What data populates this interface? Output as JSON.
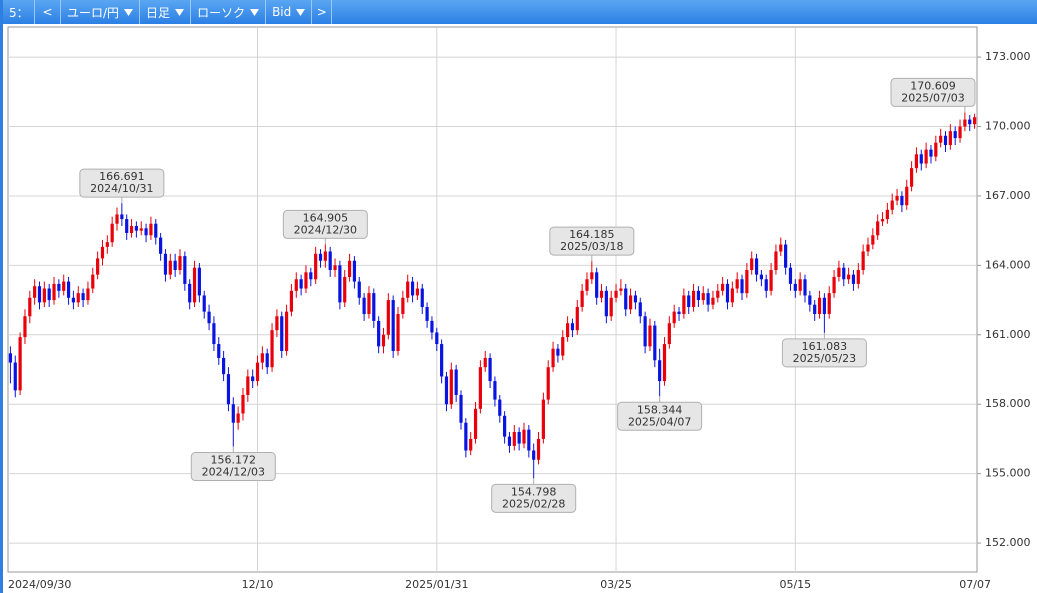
{
  "toolbar": {
    "items": [
      "5：",
      "<",
      "ユーロ/円",
      "日足",
      "ローソク",
      "Bid",
      ">"
    ]
  },
  "chart_data": {
    "type": "candlestick",
    "up_color": "#e8000b",
    "down_color": "#0a14e0",
    "grid": true,
    "ylim": [
      150.75,
      174.3
    ],
    "yticks": [
      {
        "value": 152,
        "label": "152.000"
      },
      {
        "value": 155,
        "label": "155.000"
      },
      {
        "value": 158,
        "label": "158.000"
      },
      {
        "value": 161,
        "label": "161.000"
      },
      {
        "value": 164,
        "label": "164.000"
      },
      {
        "value": 167,
        "label": "167.000"
      },
      {
        "value": 170,
        "label": "170.000"
      },
      {
        "value": 173,
        "label": "173.000"
      }
    ],
    "categories": [
      "2024/09/30",
      null,
      null,
      null,
      null,
      null,
      null,
      null,
      null,
      null,
      null,
      null,
      null,
      null,
      null,
      null,
      null,
      null,
      null,
      null,
      null,
      null,
      null,
      null,
      null,
      null,
      null,
      null,
      null,
      null,
      null,
      null,
      null,
      null,
      null,
      null,
      null,
      null,
      null,
      null,
      null,
      null,
      null,
      null,
      null,
      null,
      null,
      null,
      null,
      null,
      null,
      "12/10",
      null,
      null,
      null,
      null,
      null,
      null,
      null,
      null,
      null,
      null,
      null,
      null,
      null,
      null,
      null,
      null,
      null,
      null,
      null,
      null,
      null,
      null,
      null,
      null,
      null,
      null,
      null,
      null,
      null,
      null,
      null,
      null,
      null,
      null,
      null,
      null,
      "2025/01/31",
      null,
      null,
      null,
      null,
      null,
      null,
      null,
      null,
      null,
      null,
      null,
      null,
      null,
      null,
      null,
      null,
      null,
      null,
      null,
      null,
      null,
      null,
      null,
      null,
      null,
      null,
      null,
      null,
      null,
      null,
      null,
      null,
      null,
      null,
      null,
      null,
      "03/25",
      null,
      null,
      null,
      null,
      null,
      null,
      null,
      null,
      null,
      null,
      null,
      null,
      null,
      null,
      null,
      null,
      null,
      null,
      null,
      null,
      null,
      null,
      null,
      null,
      null,
      null,
      null,
      null,
      null,
      null,
      null,
      null,
      null,
      null,
      null,
      null,
      "05/15",
      null,
      null,
      null,
      null,
      null,
      null,
      null,
      null,
      null,
      null,
      null,
      null,
      null,
      null,
      null,
      null,
      null,
      null,
      null,
      null,
      null,
      null,
      null,
      null,
      null,
      null,
      null,
      null,
      null,
      null,
      null,
      null,
      null,
      null,
      null,
      null,
      "07/07"
    ],
    "ohlc": [
      [
        160.2,
        160.5,
        158.9,
        159.8
      ],
      [
        159.8,
        160.1,
        158.3,
        158.6
      ],
      [
        158.6,
        161.1,
        158.4,
        160.9
      ],
      [
        160.9,
        162.1,
        160.6,
        161.8
      ],
      [
        161.8,
        162.9,
        161.5,
        162.6
      ],
      [
        162.6,
        163.4,
        162.3,
        163.1
      ],
      [
        163.1,
        163.3,
        162.1,
        162.4
      ],
      [
        162.4,
        163.3,
        162.2,
        163.0
      ],
      [
        163.0,
        163.2,
        162.2,
        162.5
      ],
      [
        162.5,
        163.5,
        162.3,
        163.2
      ],
      [
        163.2,
        163.4,
        162.6,
        162.9
      ],
      [
        162.9,
        163.6,
        162.7,
        163.3
      ],
      [
        163.3,
        163.5,
        162.3,
        162.6
      ],
      [
        162.6,
        162.9,
        162.1,
        162.4
      ],
      [
        162.4,
        163.1,
        162.2,
        162.8
      ],
      [
        162.8,
        163.0,
        162.2,
        162.5
      ],
      [
        162.5,
        163.3,
        162.3,
        163.0
      ],
      [
        163.0,
        163.9,
        162.8,
        163.6
      ],
      [
        163.6,
        164.6,
        163.4,
        164.3
      ],
      [
        164.3,
        165.1,
        164.0,
        164.8
      ],
      [
        164.8,
        165.3,
        164.5,
        165.0
      ],
      [
        165.0,
        166.1,
        164.8,
        165.8
      ],
      [
        165.8,
        166.5,
        165.5,
        166.2
      ],
      [
        166.2,
        166.691,
        165.7,
        166.0
      ],
      [
        166.0,
        166.2,
        165.1,
        165.4
      ],
      [
        165.4,
        166.0,
        165.2,
        165.7
      ],
      [
        165.7,
        165.9,
        165.2,
        165.5
      ],
      [
        165.5,
        165.9,
        165.3,
        165.6
      ],
      [
        165.6,
        165.8,
        165.0,
        165.3
      ],
      [
        165.3,
        166.1,
        165.1,
        165.8
      ],
      [
        165.8,
        166.0,
        164.9,
        165.2
      ],
      [
        165.2,
        165.4,
        164.2,
        164.5
      ],
      [
        164.5,
        164.7,
        163.3,
        163.6
      ],
      [
        163.6,
        164.5,
        163.4,
        164.2
      ],
      [
        164.2,
        164.5,
        163.5,
        163.8
      ],
      [
        163.8,
        164.7,
        163.6,
        164.4
      ],
      [
        164.4,
        164.6,
        162.9,
        163.2
      ],
      [
        163.2,
        163.4,
        162.1,
        162.4
      ],
      [
        162.4,
        164.2,
        162.2,
        163.9
      ],
      [
        163.9,
        164.1,
        162.4,
        162.7
      ],
      [
        162.7,
        162.9,
        161.7,
        162.0
      ],
      [
        162.0,
        162.3,
        161.2,
        161.5
      ],
      [
        161.5,
        161.8,
        160.3,
        160.6
      ],
      [
        160.6,
        160.9,
        159.7,
        160.0
      ],
      [
        160.0,
        160.3,
        159.0,
        159.3
      ],
      [
        159.3,
        159.6,
        157.7,
        158.0
      ],
      [
        158.0,
        158.3,
        156.172,
        157.2
      ],
      [
        157.2,
        157.9,
        156.9,
        157.6
      ],
      [
        157.6,
        158.7,
        157.3,
        158.4
      ],
      [
        158.4,
        159.5,
        158.1,
        159.2
      ],
      [
        159.2,
        159.5,
        158.7,
        159.0
      ],
      [
        159.0,
        160.1,
        158.8,
        159.8
      ],
      [
        159.8,
        160.5,
        159.5,
        160.2
      ],
      [
        160.2,
        160.4,
        159.3,
        159.6
      ],
      [
        159.6,
        161.5,
        159.4,
        161.2
      ],
      [
        161.2,
        162.1,
        160.9,
        161.8
      ],
      [
        161.8,
        162.0,
        160.0,
        160.3
      ],
      [
        160.3,
        162.3,
        160.1,
        162.0
      ],
      [
        162.0,
        163.2,
        161.8,
        162.9
      ],
      [
        162.9,
        163.7,
        162.6,
        163.4
      ],
      [
        163.4,
        163.6,
        162.7,
        163.0
      ],
      [
        163.0,
        164.0,
        162.8,
        163.7
      ],
      [
        163.7,
        163.9,
        163.1,
        163.4
      ],
      [
        163.4,
        164.8,
        163.2,
        164.5
      ],
      [
        164.5,
        164.7,
        163.9,
        164.2
      ],
      [
        164.2,
        164.905,
        163.9,
        164.6
      ],
      [
        164.6,
        164.8,
        163.5,
        163.8
      ],
      [
        163.8,
        164.3,
        163.5,
        164.0
      ],
      [
        164.0,
        164.2,
        162.1,
        162.4
      ],
      [
        162.4,
        163.8,
        162.2,
        163.5
      ],
      [
        163.5,
        164.5,
        163.3,
        164.2
      ],
      [
        164.2,
        164.4,
        163.0,
        163.3
      ],
      [
        163.3,
        163.5,
        162.3,
        162.6
      ],
      [
        162.6,
        162.8,
        161.6,
        161.9
      ],
      [
        161.9,
        163.1,
        161.7,
        162.8
      ],
      [
        162.8,
        163.0,
        161.3,
        161.6
      ],
      [
        161.6,
        161.8,
        160.2,
        160.5
      ],
      [
        160.5,
        161.3,
        160.2,
        161.0
      ],
      [
        161.0,
        162.8,
        160.8,
        162.5
      ],
      [
        162.5,
        162.7,
        160.0,
        160.3
      ],
      [
        160.3,
        162.2,
        160.1,
        161.9
      ],
      [
        161.9,
        162.9,
        161.7,
        162.6
      ],
      [
        162.6,
        163.6,
        162.4,
        163.3
      ],
      [
        163.3,
        163.5,
        162.4,
        162.7
      ],
      [
        162.7,
        163.3,
        162.5,
        163.0
      ],
      [
        163.0,
        163.2,
        161.9,
        162.2
      ],
      [
        162.2,
        162.4,
        161.3,
        161.6
      ],
      [
        161.6,
        161.8,
        160.8,
        161.1
      ],
      [
        161.1,
        161.3,
        160.3,
        160.6
      ],
      [
        160.6,
        160.8,
        158.9,
        159.2
      ],
      [
        159.2,
        159.4,
        157.7,
        158.0
      ],
      [
        158.0,
        159.8,
        157.8,
        159.5
      ],
      [
        159.5,
        159.7,
        158.1,
        158.4
      ],
      [
        158.4,
        158.6,
        156.9,
        157.2
      ],
      [
        157.2,
        157.4,
        155.7,
        156.0
      ],
      [
        156.0,
        156.8,
        155.8,
        156.5
      ],
      [
        156.5,
        158.1,
        156.3,
        157.8
      ],
      [
        157.8,
        159.9,
        157.6,
        159.6
      ],
      [
        159.6,
        160.3,
        159.4,
        160.0
      ],
      [
        160.0,
        160.2,
        158.7,
        159.0
      ],
      [
        159.0,
        159.2,
        157.9,
        158.2
      ],
      [
        158.2,
        158.4,
        157.2,
        157.5
      ],
      [
        157.5,
        157.7,
        156.3,
        156.6
      ],
      [
        156.6,
        156.8,
        155.9,
        156.2
      ],
      [
        156.2,
        157.1,
        156.0,
        156.8
      ],
      [
        156.8,
        157.0,
        156.0,
        156.3
      ],
      [
        156.3,
        157.2,
        156.1,
        156.9
      ],
      [
        156.9,
        157.1,
        155.7,
        156.0
      ],
      [
        156.0,
        156.3,
        154.798,
        155.6
      ],
      [
        155.6,
        156.8,
        155.4,
        156.5
      ],
      [
        156.5,
        158.5,
        156.3,
        158.2
      ],
      [
        158.2,
        159.9,
        158.0,
        159.6
      ],
      [
        159.6,
        160.7,
        159.4,
        160.4
      ],
      [
        160.4,
        160.6,
        159.8,
        160.1
      ],
      [
        160.1,
        161.2,
        159.9,
        160.9
      ],
      [
        160.9,
        161.8,
        160.7,
        161.5
      ],
      [
        161.5,
        161.7,
        160.9,
        161.2
      ],
      [
        161.2,
        162.5,
        161.0,
        162.2
      ],
      [
        162.2,
        163.2,
        162.0,
        162.9
      ],
      [
        162.9,
        163.7,
        162.7,
        163.4
      ],
      [
        163.4,
        164.185,
        163.2,
        163.7
      ],
      [
        163.7,
        163.9,
        162.3,
        162.6
      ],
      [
        162.6,
        163.2,
        162.4,
        162.9
      ],
      [
        162.9,
        163.1,
        161.5,
        161.8
      ],
      [
        161.8,
        162.9,
        161.6,
        162.6
      ],
      [
        162.6,
        163.2,
        162.4,
        162.9
      ],
      [
        162.9,
        163.4,
        162.7,
        163.0
      ],
      [
        163.0,
        163.2,
        161.8,
        162.1
      ],
      [
        162.1,
        163.0,
        161.9,
        162.7
      ],
      [
        162.7,
        162.9,
        162.1,
        162.4
      ],
      [
        162.4,
        162.6,
        161.5,
        161.8
      ],
      [
        161.8,
        162.0,
        160.2,
        160.5
      ],
      [
        160.5,
        161.7,
        160.3,
        161.4
      ],
      [
        161.4,
        161.6,
        159.6,
        159.9
      ],
      [
        159.9,
        160.4,
        158.344,
        159.0
      ],
      [
        159.0,
        160.9,
        158.8,
        160.6
      ],
      [
        160.6,
        161.8,
        160.4,
        161.5
      ],
      [
        161.5,
        162.3,
        161.3,
        162.0
      ],
      [
        162.0,
        162.2,
        161.6,
        161.9
      ],
      [
        161.9,
        163.0,
        161.7,
        162.7
      ],
      [
        162.7,
        162.9,
        161.9,
        162.2
      ],
      [
        162.2,
        163.2,
        162.0,
        162.9
      ],
      [
        162.9,
        163.1,
        162.2,
        162.5
      ],
      [
        162.5,
        163.1,
        162.3,
        162.8
      ],
      [
        162.8,
        163.0,
        162.0,
        162.3
      ],
      [
        162.3,
        162.9,
        162.1,
        162.6
      ],
      [
        162.6,
        163.2,
        162.4,
        162.9
      ],
      [
        162.9,
        163.5,
        162.7,
        163.2
      ],
      [
        163.2,
        163.4,
        162.1,
        162.4
      ],
      [
        162.4,
        163.3,
        162.2,
        163.0
      ],
      [
        163.0,
        163.7,
        162.8,
        163.4
      ],
      [
        163.4,
        163.6,
        162.5,
        162.8
      ],
      [
        162.8,
        164.1,
        162.6,
        163.8
      ],
      [
        163.8,
        164.6,
        163.6,
        164.3
      ],
      [
        164.3,
        164.5,
        163.3,
        163.6
      ],
      [
        163.6,
        163.8,
        163.1,
        163.4
      ],
      [
        163.4,
        163.6,
        162.6,
        162.9
      ],
      [
        162.9,
        164.1,
        162.7,
        163.8
      ],
      [
        163.8,
        164.9,
        163.6,
        164.6
      ],
      [
        164.6,
        165.2,
        164.4,
        164.9
      ],
      [
        164.9,
        165.1,
        163.6,
        163.9
      ],
      [
        163.9,
        164.1,
        162.9,
        163.2
      ],
      [
        163.2,
        163.4,
        162.6,
        162.9
      ],
      [
        162.9,
        163.7,
        162.7,
        163.4
      ],
      [
        163.4,
        163.6,
        162.4,
        162.7
      ],
      [
        162.7,
        162.9,
        162.0,
        162.3
      ],
      [
        162.3,
        162.5,
        161.6,
        161.9
      ],
      [
        161.9,
        162.9,
        161.7,
        162.6
      ],
      [
        162.6,
        162.8,
        161.083,
        161.9
      ],
      [
        161.9,
        163.1,
        161.7,
        162.8
      ],
      [
        162.8,
        163.8,
        162.6,
        163.5
      ],
      [
        163.5,
        164.2,
        163.3,
        163.9
      ],
      [
        163.9,
        164.1,
        163.1,
        163.4
      ],
      [
        163.4,
        163.9,
        163.2,
        163.6
      ],
      [
        163.6,
        163.8,
        162.9,
        163.2
      ],
      [
        163.2,
        164.1,
        163.0,
        163.8
      ],
      [
        163.8,
        164.9,
        163.6,
        164.6
      ],
      [
        164.6,
        165.2,
        164.4,
        164.9
      ],
      [
        164.9,
        165.6,
        164.7,
        165.3
      ],
      [
        165.3,
        166.2,
        165.1,
        165.9
      ],
      [
        165.9,
        166.3,
        165.7,
        166.0
      ],
      [
        166.0,
        166.7,
        165.8,
        166.4
      ],
      [
        166.4,
        167.1,
        166.2,
        166.8
      ],
      [
        166.8,
        167.3,
        166.6,
        167.0
      ],
      [
        167.0,
        167.2,
        166.3,
        166.6
      ],
      [
        166.6,
        167.7,
        166.4,
        167.4
      ],
      [
        167.4,
        168.5,
        167.2,
        168.2
      ],
      [
        168.2,
        169.1,
        168.0,
        168.8
      ],
      [
        168.8,
        169.0,
        168.1,
        168.4
      ],
      [
        168.4,
        169.3,
        168.2,
        169.0
      ],
      [
        169.0,
        169.2,
        168.4,
        168.7
      ],
      [
        168.7,
        169.6,
        168.5,
        169.3
      ],
      [
        169.3,
        169.9,
        169.1,
        169.6
      ],
      [
        169.6,
        169.8,
        168.9,
        169.2
      ],
      [
        169.2,
        170.1,
        169.0,
        169.8
      ],
      [
        169.8,
        170.0,
        169.2,
        169.5
      ],
      [
        169.5,
        170.3,
        169.3,
        170.0
      ],
      [
        170.0,
        170.609,
        169.8,
        170.3
      ],
      [
        170.3,
        170.5,
        169.8,
        170.1
      ],
      [
        170.1,
        170.55,
        169.9,
        170.4
      ]
    ],
    "annotations": [
      {
        "value": 166.691,
        "date": "2024/10/31"
      },
      {
        "value": 156.172,
        "date": "2024/12/03"
      },
      {
        "value": 164.905,
        "date": "2024/12/30"
      },
      {
        "value": 154.798,
        "date": "2025/02/28"
      },
      {
        "value": 164.185,
        "date": "2025/03/18"
      },
      {
        "value": 158.344,
        "date": "2025/04/07"
      },
      {
        "value": 161.083,
        "date": "2025/05/23"
      },
      {
        "value": 170.609,
        "date": "2025/07/03"
      }
    ]
  }
}
